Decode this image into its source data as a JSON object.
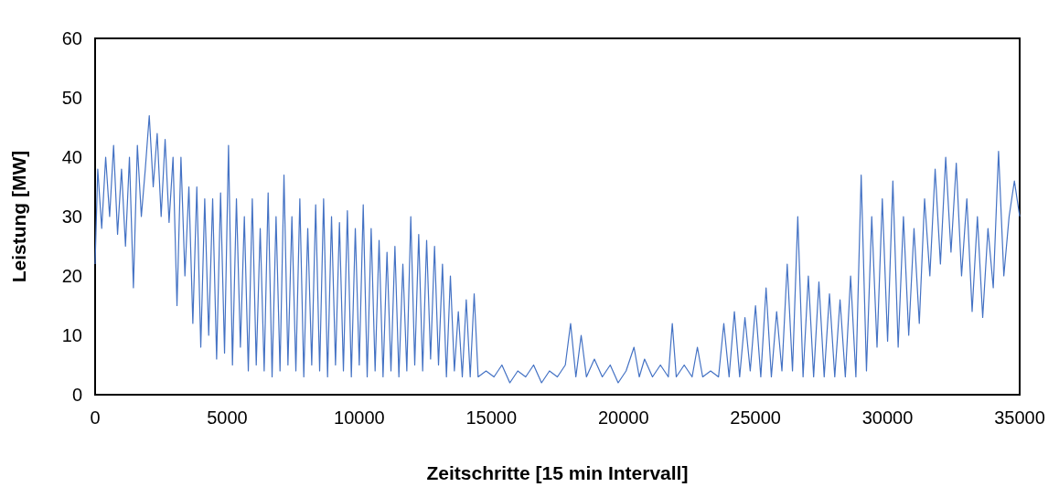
{
  "chart_data": {
    "type": "line",
    "xlabel": "Zeitschritte [15 min Intervall]",
    "ylabel": "Leistung [MW]",
    "x": [
      0,
      100,
      250,
      400,
      550,
      700,
      850,
      1000,
      1150,
      1300,
      1450,
      1600,
      1750,
      1900,
      2050,
      2200,
      2350,
      2500,
      2650,
      2800,
      2950,
      3100,
      3250,
      3400,
      3550,
      3700,
      3850,
      4000,
      4150,
      4300,
      4450,
      4600,
      4750,
      4900,
      5050,
      5200,
      5350,
      5500,
      5650,
      5800,
      5950,
      6100,
      6250,
      6400,
      6550,
      6700,
      6850,
      7000,
      7150,
      7300,
      7450,
      7600,
      7750,
      7900,
      8050,
      8200,
      8350,
      8500,
      8650,
      8800,
      8950,
      9100,
      9250,
      9400,
      9550,
      9700,
      9850,
      10000,
      10150,
      10300,
      10450,
      10600,
      10750,
      10900,
      11050,
      11200,
      11350,
      11500,
      11650,
      11800,
      11950,
      12100,
      12250,
      12400,
      12550,
      12700,
      12850,
      13000,
      13150,
      13300,
      13450,
      13600,
      13750,
      13900,
      14050,
      14200,
      14350,
      14500,
      14800,
      15100,
      15400,
      15700,
      16000,
      16300,
      16600,
      16900,
      17200,
      17500,
      17800,
      18000,
      18200,
      18400,
      18600,
      18900,
      19200,
      19500,
      19800,
      20100,
      20400,
      20600,
      20800,
      21100,
      21400,
      21700,
      21850,
      22000,
      22300,
      22600,
      22800,
      23000,
      23300,
      23600,
      23800,
      24000,
      24200,
      24400,
      24600,
      24800,
      25000,
      25200,
      25400,
      25600,
      25800,
      26000,
      26200,
      26400,
      26600,
      26800,
      27000,
      27200,
      27400,
      27600,
      27800,
      28000,
      28200,
      28400,
      28600,
      28800,
      29000,
      29200,
      29400,
      29600,
      29800,
      30000,
      30200,
      30400,
      30600,
      30800,
      31000,
      31200,
      31400,
      31600,
      31800,
      32000,
      32200,
      32400,
      32600,
      32800,
      33000,
      33200,
      33400,
      33600,
      33800,
      34000,
      34200,
      34400,
      34600,
      34800,
      35000
    ],
    "series": [
      {
        "color": "#4472c4",
        "values": [
          22,
          38,
          28,
          40,
          30,
          42,
          27,
          38,
          25,
          40,
          18,
          42,
          30,
          38,
          47,
          35,
          44,
          30,
          43,
          29,
          40,
          15,
          40,
          20,
          35,
          12,
          35,
          8,
          33,
          10,
          33,
          6,
          34,
          7,
          42,
          5,
          33,
          8,
          30,
          4,
          33,
          5,
          28,
          4,
          34,
          3,
          30,
          4,
          37,
          5,
          30,
          4,
          33,
          3,
          28,
          5,
          32,
          4,
          33,
          3,
          30,
          5,
          29,
          4,
          31,
          3,
          28,
          5,
          32,
          3,
          28,
          4,
          26,
          3,
          24,
          4,
          25,
          3,
          22,
          4,
          30,
          5,
          27,
          4,
          26,
          6,
          25,
          5,
          22,
          3,
          20,
          4,
          14,
          3,
          16,
          3,
          17,
          3,
          4,
          3,
          5,
          2,
          4,
          3,
          5,
          2,
          4,
          3,
          5,
          12,
          3,
          10,
          3,
          6,
          3,
          5,
          2,
          4,
          8,
          3,
          6,
          3,
          5,
          3,
          12,
          3,
          5,
          3,
          8,
          3,
          4,
          3,
          12,
          3,
          14,
          3,
          13,
          4,
          15,
          3,
          18,
          3,
          14,
          4,
          22,
          4,
          30,
          3,
          20,
          3,
          19,
          3,
          17,
          3,
          16,
          3,
          20,
          3,
          37,
          4,
          30,
          8,
          33,
          9,
          36,
          8,
          30,
          10,
          28,
          12,
          33,
          20,
          38,
          22,
          40,
          24,
          39,
          20,
          33,
          14,
          30,
          13,
          28,
          18,
          41,
          20,
          30,
          36,
          30
        ]
      }
    ],
    "xlim": [
      0,
      35000
    ],
    "xticks": [
      0,
      5000,
      10000,
      15000,
      20000,
      25000,
      30000,
      35000
    ],
    "ylim": [
      0,
      60
    ],
    "yticks": [
      0,
      10,
      20,
      30,
      40,
      50,
      60
    ],
    "grid": false
  }
}
